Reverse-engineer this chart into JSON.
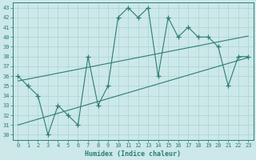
{
  "xlabel": "Humidex (Indice chaleur)",
  "bg_color": "#cce8e8",
  "line_color": "#2d7d74",
  "grid_color": "#aad4d0",
  "xlim": [
    -0.5,
    23.5
  ],
  "ylim": [
    29.5,
    43.5
  ],
  "yticks": [
    30,
    31,
    32,
    33,
    34,
    35,
    36,
    37,
    38,
    39,
    40,
    41,
    42,
    43
  ],
  "xticks": [
    0,
    1,
    2,
    3,
    4,
    5,
    6,
    7,
    8,
    9,
    10,
    11,
    12,
    13,
    14,
    15,
    16,
    17,
    18,
    19,
    20,
    21,
    22,
    23
  ],
  "series": {
    "jagged": [
      36,
      35,
      34,
      30,
      33,
      32,
      31,
      38,
      33,
      35,
      42,
      43,
      42,
      43,
      36,
      42,
      40,
      41,
      40,
      40,
      39,
      35,
      38,
      38
    ],
    "trend_upper": [
      35.5,
      35.7,
      35.9,
      36.1,
      36.3,
      36.5,
      36.7,
      36.9,
      37.1,
      37.3,
      37.5,
      37.7,
      37.9,
      38.1,
      38.3,
      38.5,
      38.7,
      38.9,
      39.1,
      39.3,
      39.5,
      39.7,
      39.9,
      40.1
    ],
    "trend_lower": [
      31.0,
      31.3,
      31.6,
      31.9,
      32.2,
      32.5,
      32.8,
      33.1,
      33.4,
      33.7,
      34.0,
      34.3,
      34.6,
      34.9,
      35.2,
      35.5,
      35.8,
      36.1,
      36.4,
      36.7,
      37.0,
      37.3,
      37.6,
      37.9
    ]
  }
}
